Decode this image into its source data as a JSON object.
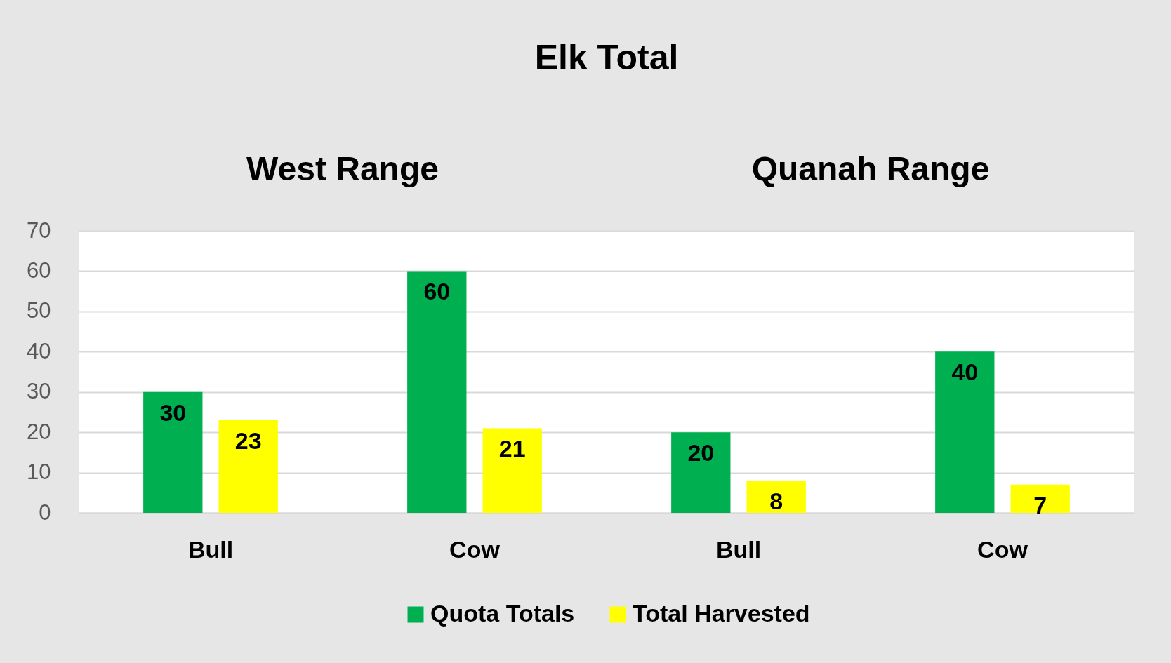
{
  "chart_data": {
    "type": "bar",
    "title": "Elk Total",
    "annotations": [
      "West Range",
      "Quanah Range"
    ],
    "categories": [
      "Bull",
      "Cow",
      "Bull",
      "Cow"
    ],
    "series": [
      {
        "name": "Quota Totals",
        "color": "#00b050",
        "values": [
          30,
          60,
          20,
          40
        ]
      },
      {
        "name": "Total Harvested",
        "color": "#ffff00",
        "values": [
          23,
          21,
          8,
          7
        ]
      }
    ],
    "ylim": [
      0,
      70
    ],
    "yticks": [
      0,
      10,
      20,
      30,
      40,
      50,
      60,
      70
    ],
    "grid": "y",
    "legend": "bottom",
    "data_labels": true
  }
}
